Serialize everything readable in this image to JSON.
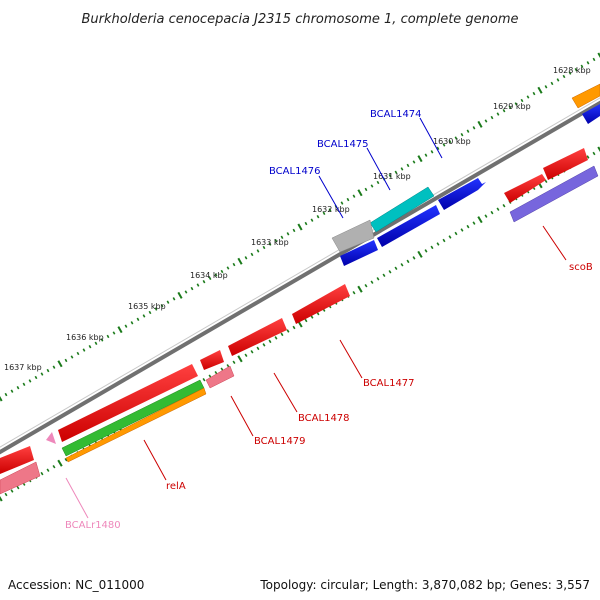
{
  "title": "Burkholderia cenocepacia J2315 chromosome 1, complete genome",
  "footer": {
    "accession": "Accession: NC_011000",
    "summary": "Topology: circular; Length: 3,870,082 bp; Genes: 3,557"
  },
  "tick_labels": [
    "1628 kbp",
    "1629 kbp",
    "1630 kbp",
    "1631 kbp",
    "1632 kbp",
    "1633 kbp",
    "1634 kbp",
    "1635 kbp",
    "1636 kbp",
    "1637 kbp"
  ],
  "gene_labels": {
    "bcal1474": "BCAL1474",
    "bcal1475": "BCAL1475",
    "bcal1476": "BCAL1476",
    "scob": "scoB",
    "bcal1477": "BCAL1477",
    "bcal1478": "BCAL1478",
    "bcal1479": "BCAL1479",
    "rela": "relA",
    "bcalr1480": "BCALr1480"
  },
  "colors": {
    "backbone": "#808080",
    "tick": "#1a7a1a",
    "red": "#ee0000",
    "blue": "#0000dd",
    "cyan": "#00c0c0",
    "gray": "#b0b0b0",
    "orange": "#ff9900",
    "green": "#33bb33",
    "purple": "#7766dd",
    "pink": "#ee7788",
    "rrna": "#ee88bb"
  }
}
